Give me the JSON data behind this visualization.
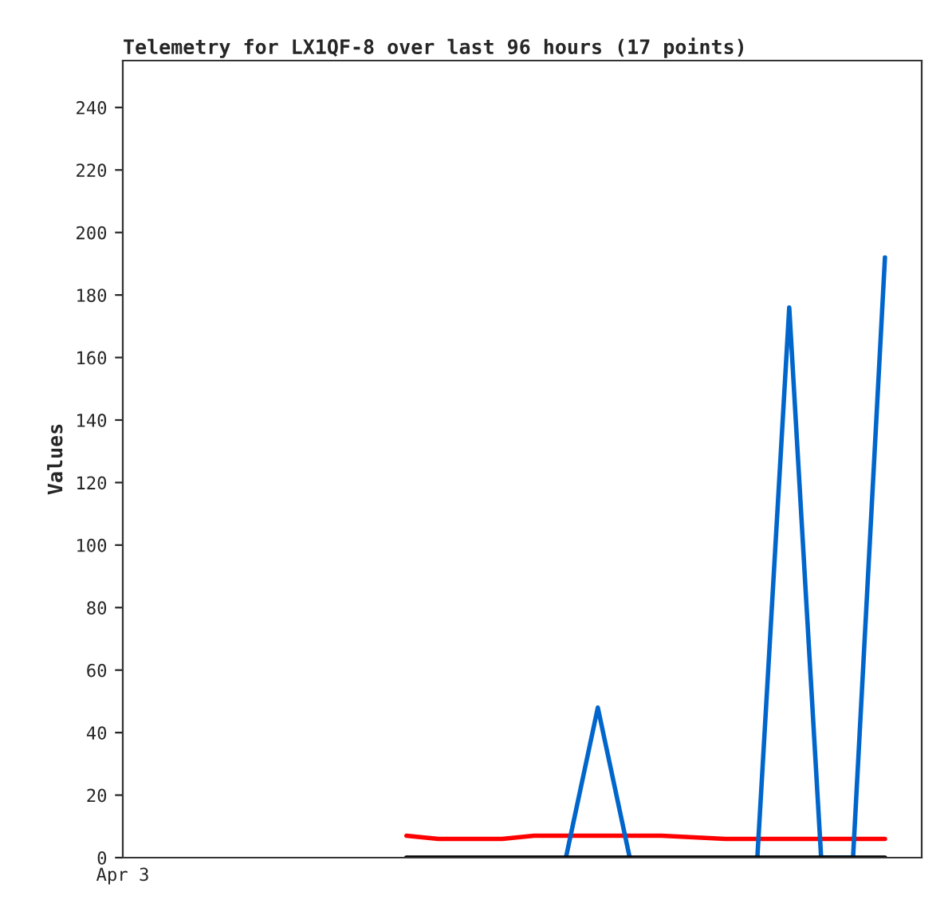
{
  "chart_data": {
    "type": "line",
    "title": "Telemetry for LX1QF-8 over last 96 hours (17 points)",
    "ylabel": "Values",
    "categories": [
      null,
      null,
      null,
      null,
      null,
      null,
      null,
      null,
      null,
      null,
      null,
      null,
      null,
      null,
      null,
      null
    ],
    "series": [
      {
        "color": "#ff0000",
        "values": [
          7,
          6,
          6,
          6,
          7,
          7,
          7,
          7,
          7,
          6.5,
          6,
          6,
          6,
          6,
          6,
          6
        ]
      },
      {
        "color": "#0066cc",
        "values": [
          null,
          null,
          null,
          null,
          null,
          0,
          48,
          0,
          null,
          null,
          null,
          0,
          176,
          0,
          0,
          192
        ]
      },
      {
        "color": "#000000",
        "values": [
          0,
          0,
          0,
          0,
          0,
          0,
          0,
          0,
          0,
          0,
          0,
          0,
          0,
          0,
          0,
          0
        ]
      }
    ],
    "annotations": [
      "Apr 3"
    ],
    "ylim": [
      0,
      255
    ],
    "yticks": [
      0,
      20,
      40,
      60,
      80,
      100,
      120,
      140,
      160,
      180,
      200,
      220,
      240
    ],
    "grid": false,
    "legend": false,
    "marker": "none",
    "line_style": "solid"
  }
}
